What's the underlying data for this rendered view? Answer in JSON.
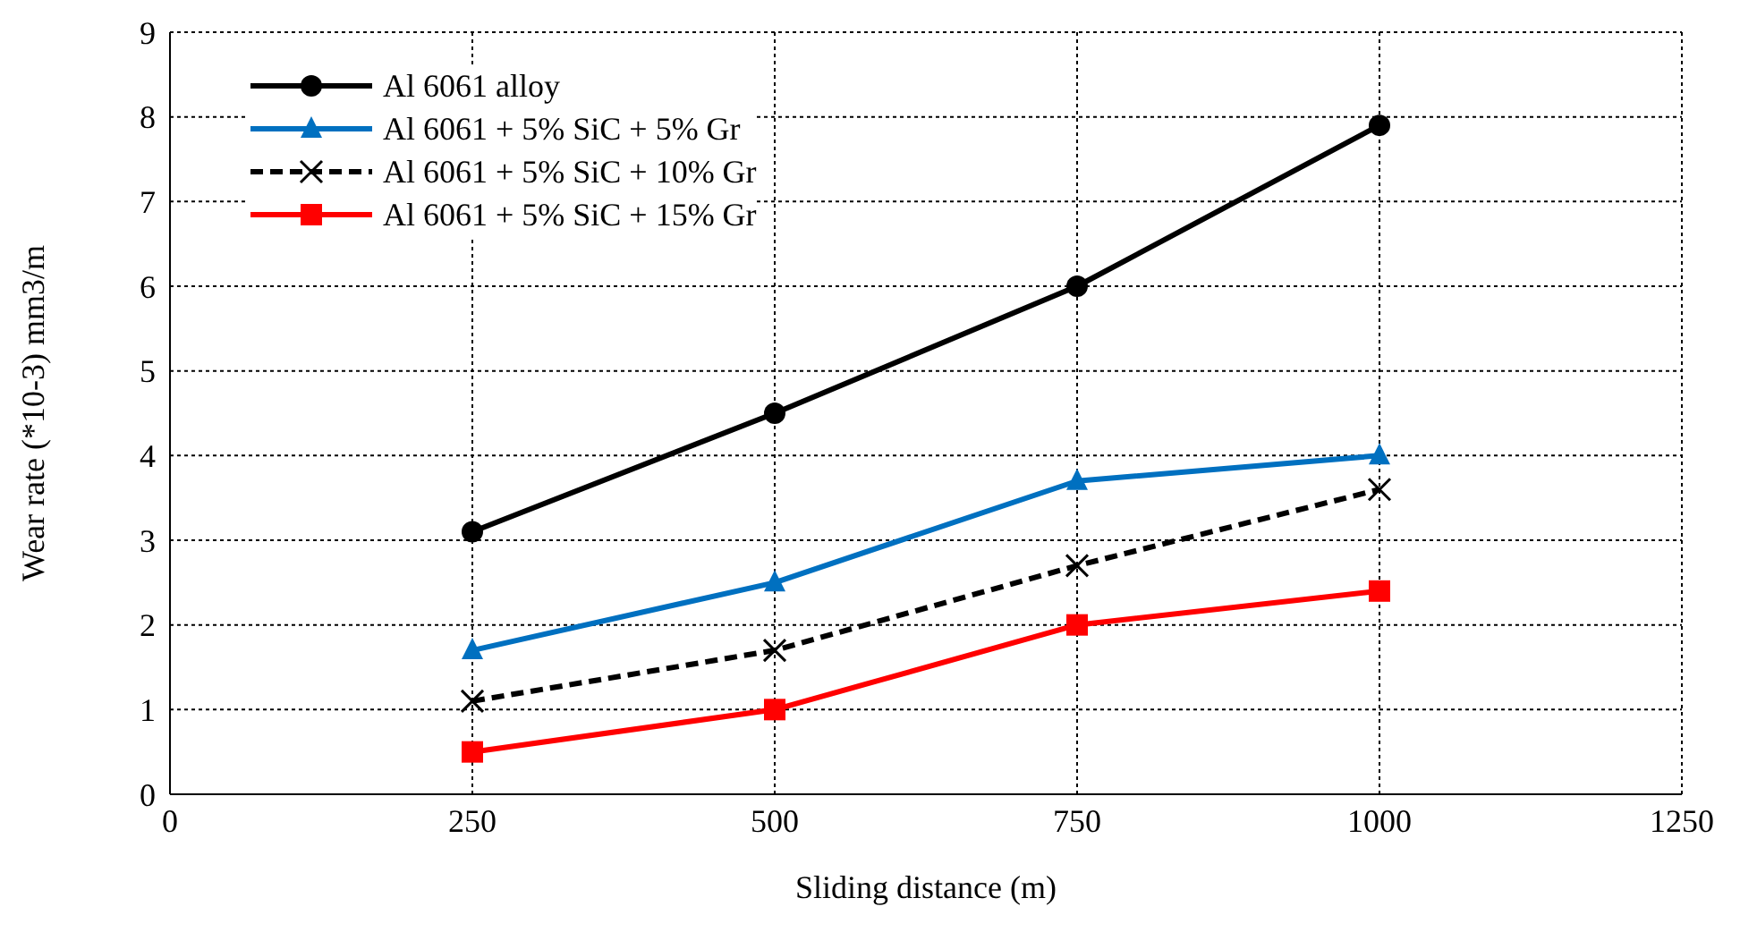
{
  "chart_data": {
    "type": "line",
    "xlabel": "Sliding distance (m)",
    "ylabel": "Wear rate (*10-3) mm3/m",
    "x": [
      250,
      500,
      750,
      1000
    ],
    "series": [
      {
        "name": "Al 6061 alloy",
        "color": "#000000",
        "marker": "circle",
        "line_style": "solid",
        "values": [
          3.1,
          4.5,
          6.0,
          7.9
        ]
      },
      {
        "name": "Al 6061 + 5% SiC + 5% Gr",
        "color": "#0070c0",
        "marker": "triangle",
        "line_style": "solid",
        "values": [
          1.7,
          2.5,
          3.7,
          4.0
        ]
      },
      {
        "name": "Al 6061 + 5% SiC + 10% Gr",
        "color": "#000000",
        "marker": "cross",
        "line_style": "dashed",
        "values": [
          1.1,
          1.7,
          2.7,
          3.6
        ]
      },
      {
        "name": "Al 6061 + 5% SiC + 15% Gr",
        "color": "#ff0000",
        "marker": "square",
        "line_style": "solid",
        "values": [
          0.5,
          1.0,
          2.0,
          2.4
        ]
      }
    ],
    "xlim": [
      0,
      1250
    ],
    "xticks": [
      0,
      250,
      500,
      750,
      1000,
      1250
    ],
    "ylim": [
      0,
      9
    ],
    "yticks": [
      0,
      1,
      2,
      3,
      4,
      5,
      6,
      7,
      8,
      9
    ],
    "grid": true,
    "legend": "top left"
  }
}
